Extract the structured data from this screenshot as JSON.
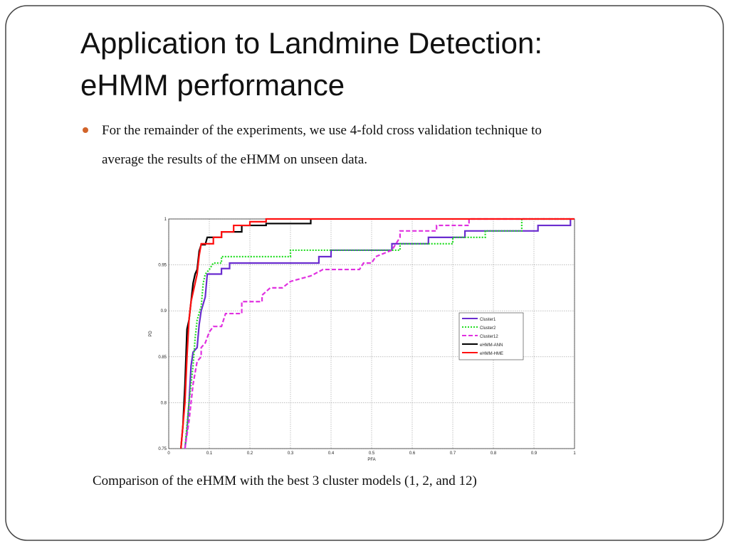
{
  "slide": {
    "title_lines": [
      "Application to Landmine Detection:",
      "eHMM performance"
    ],
    "bullet": [
      "For the remainder of the experiments, we use 4-fold cross validation technique to",
      "average the results of the eHMM on unseen data."
    ],
    "caption": "Comparison of the eHMM with the best 3 cluster models (1, 2, and 12)"
  },
  "chart_data": {
    "type": "line",
    "xlabel": "PFA",
    "ylabel": "PD",
    "xlim": [
      0,
      1
    ],
    "ylim": [
      0.75,
      1
    ],
    "xticks": [
      0,
      0.1,
      0.2,
      0.3,
      0.4,
      0.5,
      0.6,
      0.7,
      0.8,
      0.9,
      1
    ],
    "yticks": [
      0.75,
      0.8,
      0.85,
      0.9,
      0.95,
      1
    ],
    "grid": true,
    "legend": "right",
    "series": [
      {
        "name": "Cluster1",
        "color": "#6a2ccf",
        "dash": "solid",
        "x": [
          0.04,
          0.045,
          0.05,
          0.055,
          0.06,
          0.07,
          0.075,
          0.08,
          0.09,
          0.095,
          0.13,
          0.13,
          0.15,
          0.15,
          0.37,
          0.37,
          0.4,
          0.4,
          0.55,
          0.55,
          0.64,
          0.64,
          0.73,
          0.73,
          0.91,
          0.91,
          0.99,
          0.99
        ],
        "values": [
          0.75,
          0.77,
          0.8,
          0.84,
          0.855,
          0.86,
          0.885,
          0.9,
          0.915,
          0.94,
          0.94,
          0.946,
          0.946,
          0.952,
          0.952,
          0.959,
          0.959,
          0.966,
          0.966,
          0.973,
          0.973,
          0.98,
          0.98,
          0.987,
          0.987,
          0.993,
          0.993,
          1
        ]
      },
      {
        "name": "Cluster2",
        "color": "#22dd22",
        "dash": "dotted",
        "x": [
          0.04,
          0.05,
          0.06,
          0.065,
          0.07,
          0.08,
          0.085,
          0.09,
          0.1,
          0.11,
          0.13,
          0.13,
          0.3,
          0.3,
          0.57,
          0.57,
          0.7,
          0.7,
          0.78,
          0.78,
          0.87,
          0.87,
          1
        ],
        "values": [
          0.75,
          0.8,
          0.84,
          0.87,
          0.89,
          0.905,
          0.93,
          0.94,
          0.945,
          0.952,
          0.952,
          0.959,
          0.959,
          0.966,
          0.966,
          0.973,
          0.973,
          0.98,
          0.98,
          0.987,
          0.987,
          1,
          1
        ]
      },
      {
        "name": "Cluster12",
        "color": "#e030e0",
        "dash": "dashed",
        "x": [
          0.04,
          0.05,
          0.06,
          0.07,
          0.08,
          0.08,
          0.09,
          0.1,
          0.11,
          0.13,
          0.14,
          0.18,
          0.18,
          0.23,
          0.23,
          0.25,
          0.28,
          0.3,
          0.35,
          0.38,
          0.47,
          0.48,
          0.5,
          0.51,
          0.55,
          0.56,
          0.57,
          0.57,
          0.66,
          0.66,
          0.74,
          0.74,
          1
        ],
        "values": [
          0.75,
          0.78,
          0.82,
          0.845,
          0.85,
          0.86,
          0.865,
          0.877,
          0.883,
          0.883,
          0.897,
          0.897,
          0.91,
          0.91,
          0.917,
          0.925,
          0.925,
          0.932,
          0.938,
          0.945,
          0.945,
          0.952,
          0.952,
          0.959,
          0.966,
          0.973,
          0.98,
          0.987,
          0.987,
          0.993,
          0.993,
          1,
          1
        ]
      },
      {
        "name": "eHMM-ANN",
        "color": "#000000",
        "dash": "solid",
        "x": [
          0.03,
          0.035,
          0.04,
          0.045,
          0.05,
          0.055,
          0.06,
          0.065,
          0.07,
          0.075,
          0.08,
          0.09,
          0.095,
          0.13,
          0.13,
          0.18,
          0.18,
          0.24,
          0.24,
          0.35,
          0.35
        ],
        "values": [
          0.75,
          0.775,
          0.82,
          0.88,
          0.89,
          0.91,
          0.93,
          0.94,
          0.945,
          0.965,
          0.972,
          0.972,
          0.98,
          0.98,
          0.986,
          0.986,
          0.993,
          0.993,
          0.995,
          0.995,
          1
        ]
      },
      {
        "name": "eHMM-HME",
        "color": "#ff1010",
        "dash": "solid",
        "x": [
          0.03,
          0.04,
          0.045,
          0.05,
          0.055,
          0.06,
          0.07,
          0.075,
          0.08,
          0.11,
          0.11,
          0.13,
          0.13,
          0.16,
          0.16,
          0.2,
          0.2,
          0.24,
          0.24,
          1
        ],
        "values": [
          0.75,
          0.8,
          0.85,
          0.89,
          0.91,
          0.92,
          0.94,
          0.96,
          0.973,
          0.973,
          0.98,
          0.98,
          0.986,
          0.986,
          0.993,
          0.993,
          0.997,
          0.997,
          1,
          1
        ]
      }
    ]
  }
}
